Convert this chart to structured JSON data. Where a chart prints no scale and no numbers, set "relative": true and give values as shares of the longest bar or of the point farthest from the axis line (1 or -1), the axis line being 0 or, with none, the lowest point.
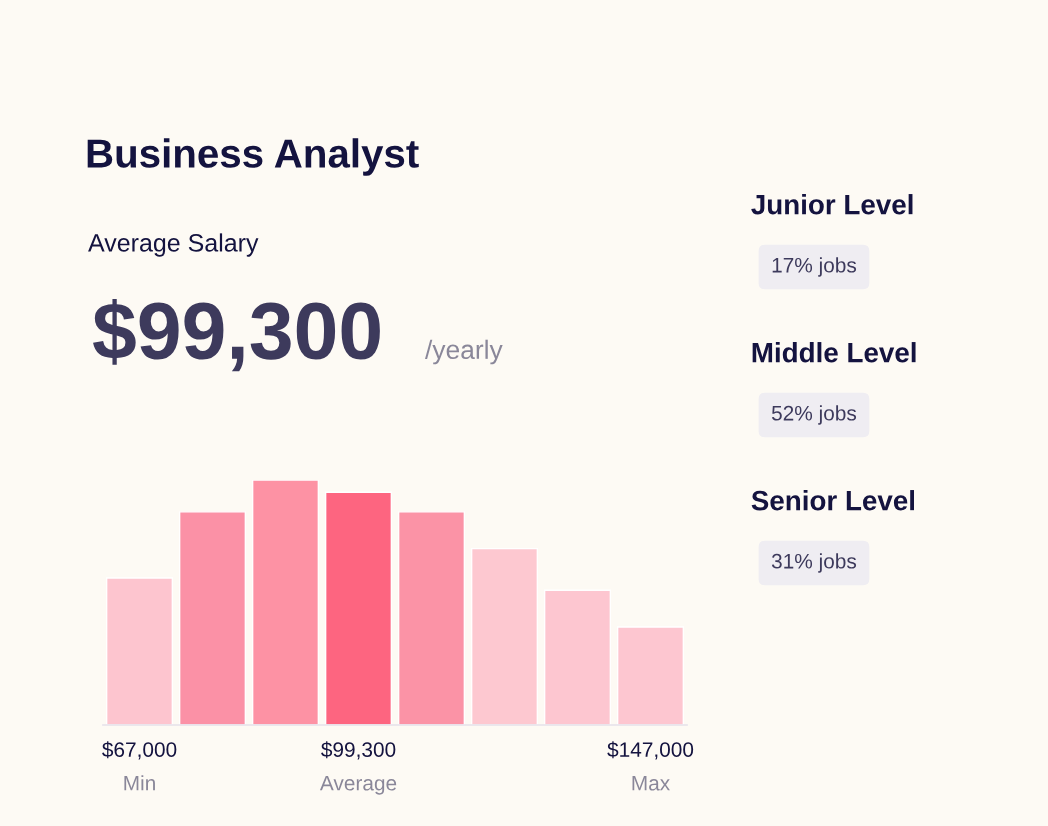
{
  "chart_data": [
    {
      "type": "bar",
      "title": "Business Analyst",
      "subtitle": "Average Salary",
      "annotations": [
        "$99,300",
        "/yearly"
      ],
      "categories": [
        "$67,000\nMin",
        null,
        null,
        "$99,300\nAverage",
        null,
        null,
        null,
        "$147,000\nMax"
      ],
      "values": [
        0.6,
        0.87,
        1,
        0.95,
        0.87,
        0.72,
        0.55,
        0.4
      ],
      "colors": [
        "#fdc5cf",
        "#fb91a6",
        "#fd92a4",
        "#fd6580",
        "#fb93a6",
        "#fdc8d0",
        "#fdc6d0",
        "#fdc6d0"
      ],
      "relative": true
    },
    {
      "type": "other",
      "annotations": [
        "Junior Level",
        "17% jobs",
        "Middle Level",
        "52% jobs",
        "Senior Level",
        "31% jobs"
      ]
    }
  ]
}
